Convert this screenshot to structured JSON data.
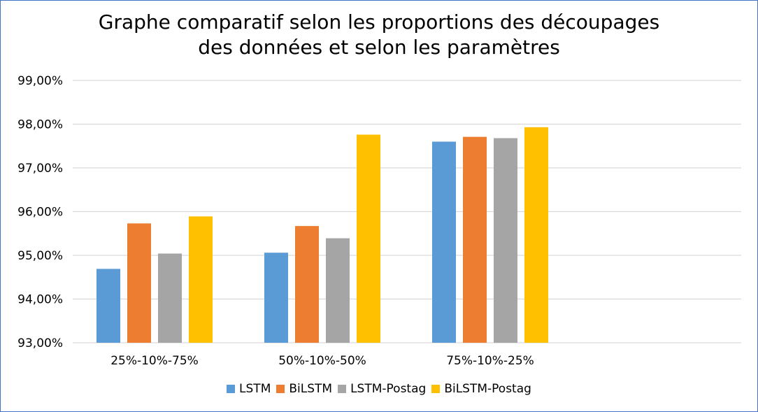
{
  "chart_data": {
    "type": "bar",
    "title": "Graphe comparatif selon les proportions des découpages",
    "subtitle": "des données et selon les paramètres",
    "categories": [
      "25%-10%-75%",
      "50%-10%-50%",
      "75%-10%-25%"
    ],
    "series": [
      {
        "name": "LSTM",
        "color": "#5b9bd5",
        "values": [
          94.69,
          95.06,
          97.6
        ]
      },
      {
        "name": "BiLSTM",
        "color": "#ed7d31",
        "values": [
          95.73,
          95.67,
          97.71
        ]
      },
      {
        "name": "LSTM-Postag",
        "color": "#a5a5a5",
        "values": [
          95.04,
          95.39,
          97.68
        ]
      },
      {
        "name": "BiLSTM-Postag",
        "color": "#ffc000",
        "values": [
          95.89,
          97.76,
          97.93
        ]
      }
    ],
    "y_ticks": [
      "93,00%",
      "94,00%",
      "95,00%",
      "96,00%",
      "97,00%",
      "98,00%",
      "99,00%"
    ],
    "ylim": [
      93,
      99
    ],
    "grid": true,
    "legend_position": "bottom",
    "xlabel": "",
    "ylabel": ""
  }
}
